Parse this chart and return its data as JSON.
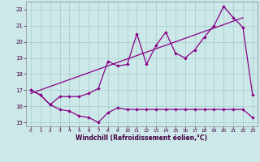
{
  "line1_x": [
    0,
    1,
    2,
    3,
    4,
    5,
    6,
    7,
    8,
    9,
    10,
    11,
    12,
    13,
    14,
    15,
    16,
    17,
    18,
    19,
    20,
    21,
    22,
    23
  ],
  "line1_y": [
    17.0,
    16.7,
    16.1,
    16.6,
    16.6,
    16.6,
    16.8,
    17.1,
    18.8,
    18.5,
    18.6,
    20.5,
    18.6,
    19.8,
    20.6,
    19.3,
    19.0,
    19.5,
    20.3,
    21.0,
    22.2,
    21.5,
    20.9,
    16.7
  ],
  "line3_x": [
    0,
    1,
    2,
    3,
    4,
    5,
    6,
    7,
    8,
    9,
    10,
    11,
    12,
    13,
    14,
    15,
    16,
    17,
    18,
    19,
    20,
    21,
    22,
    23
  ],
  "line3_y": [
    17.0,
    16.7,
    16.1,
    15.8,
    15.7,
    15.4,
    15.3,
    15.0,
    15.6,
    15.9,
    15.8,
    15.8,
    15.8,
    15.8,
    15.8,
    15.8,
    15.8,
    15.8,
    15.8,
    15.8,
    15.8,
    15.8,
    15.8,
    15.3
  ],
  "trend_x": [
    0,
    22
  ],
  "trend_y": [
    16.8,
    21.5
  ],
  "color": "#880088",
  "bg_color": "#cce8e8",
  "grid_color": "#aad0d0",
  "xlabel": "Windchill (Refroidissement éolien,°C)",
  "xlim": [
    -0.5,
    23.5
  ],
  "ylim": [
    14.75,
    22.5
  ],
  "yticks": [
    15,
    16,
    17,
    18,
    19,
    20,
    21,
    22
  ],
  "xticks": [
    0,
    1,
    2,
    3,
    4,
    5,
    6,
    7,
    8,
    9,
    10,
    11,
    12,
    13,
    14,
    15,
    16,
    17,
    18,
    19,
    20,
    21,
    22,
    23
  ]
}
